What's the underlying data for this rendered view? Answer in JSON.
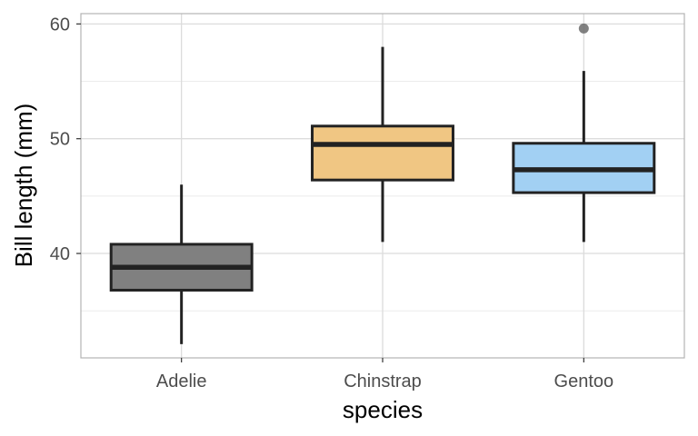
{
  "chart_data": {
    "type": "boxplot",
    "title": "",
    "xlabel": "species",
    "ylabel": "Bill length (mm)",
    "categories": [
      "Adelie",
      "Chinstrap",
      "Gentoo"
    ],
    "ylim": [
      30.9,
      60.9
    ],
    "yticks": [
      40,
      50,
      60
    ],
    "y_minor_ticks": [
      35,
      45,
      55
    ],
    "grid": true,
    "legend": "none",
    "boxes": [
      {
        "category": "Adelie",
        "whisker_low": 32.1,
        "q1": 36.8,
        "median": 38.8,
        "q3": 40.8,
        "whisker_high": 46.0,
        "outliers": [],
        "fill": "#808080"
      },
      {
        "category": "Chinstrap",
        "whisker_low": 41.0,
        "q1": 46.4,
        "median": 49.5,
        "q3": 51.1,
        "whisker_high": 58.0,
        "outliers": [],
        "fill": "#F0C683"
      },
      {
        "category": "Gentoo",
        "whisker_low": 41.0,
        "q1": 45.3,
        "median": 47.3,
        "q3": 49.6,
        "whisker_high": 55.9,
        "outliers": [
          59.6
        ],
        "fill": "#A2D0F3"
      }
    ]
  }
}
